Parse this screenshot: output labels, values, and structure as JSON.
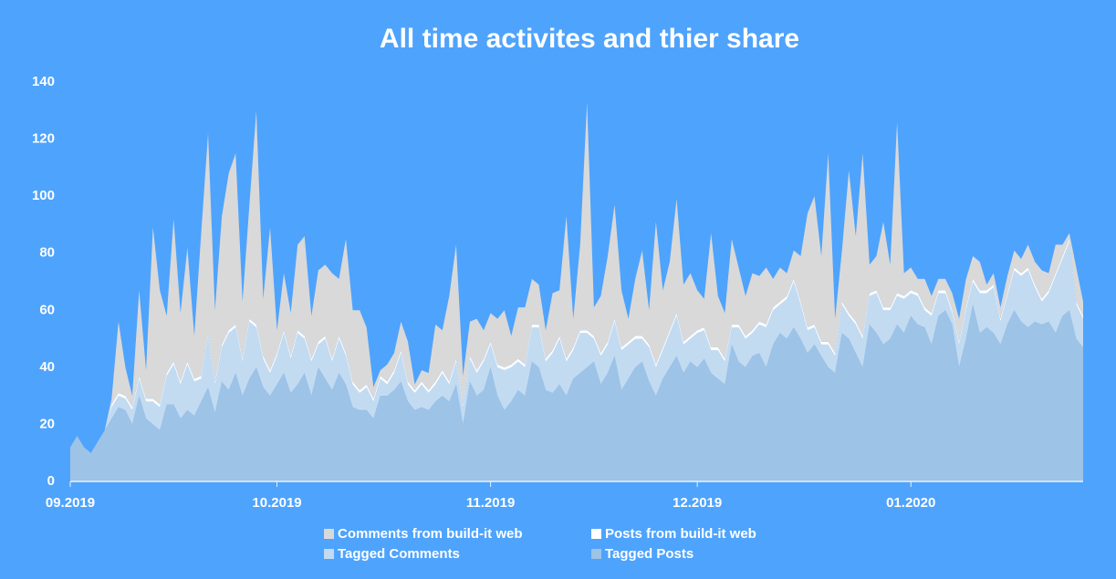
{
  "chart_data": {
    "type": "stacked-area",
    "title": "All time activites and thier share",
    "categories": [
      "09.2019",
      null,
      null,
      null,
      null,
      null,
      null,
      null,
      null,
      null,
      null,
      null,
      null,
      null,
      null,
      null,
      null,
      null,
      null,
      null,
      null,
      null,
      null,
      null,
      null,
      null,
      null,
      null,
      null,
      null,
      "10.2019",
      null,
      null,
      null,
      null,
      null,
      null,
      null,
      null,
      null,
      null,
      null,
      null,
      null,
      null,
      null,
      null,
      null,
      null,
      null,
      null,
      null,
      null,
      null,
      null,
      null,
      null,
      null,
      null,
      null,
      null,
      "11.2019",
      null,
      null,
      null,
      null,
      null,
      null,
      null,
      null,
      null,
      null,
      null,
      null,
      null,
      null,
      null,
      null,
      null,
      null,
      null,
      null,
      null,
      null,
      null,
      null,
      null,
      null,
      null,
      null,
      null,
      "12.2019",
      null,
      null,
      null,
      null,
      null,
      null,
      null,
      null,
      null,
      null,
      null,
      null,
      null,
      null,
      null,
      null,
      null,
      null,
      null,
      null,
      null,
      null,
      null,
      null,
      null,
      null,
      null,
      null,
      null,
      null,
      "01.2020",
      null,
      null,
      null,
      null,
      null,
      null,
      null,
      null,
      null,
      null,
      null,
      null,
      null,
      null,
      null,
      null,
      null,
      null,
      null,
      null,
      null,
      null,
      null,
      null,
      null
    ],
    "series": [
      {
        "name": "Comments from build-it web",
        "color": "#d9d9d9",
        "values": [
          0,
          0,
          0,
          0,
          0,
          0,
          2,
          25,
          10,
          4,
          30,
          10,
          60,
          40,
          20,
          50,
          24,
          40,
          15,
          50,
          70,
          25,
          45,
          55,
          60,
          20,
          40,
          75,
          20,
          50,
          8,
          20,
          15,
          30,
          35,
          15,
          25,
          25,
          30,
          20,
          40,
          25,
          28,
          20,
          4,
          2,
          6,
          6,
          10,
          14,
          2,
          4,
          6,
          20,
          14,
          30,
          40,
          10,
          12,
          18,
          10,
          10,
          16,
          20,
          10,
          18,
          20,
          16,
          14,
          10,
          20,
          16,
          50,
          10,
          30,
          80,
          10,
          20,
          30,
          40,
          20,
          8,
          20,
          30,
          12,
          50,
          20,
          24,
          40,
          20,
          22,
          14,
          10,
          40,
          18,
          16,
          30,
          20,
          14,
          20,
          16,
          20,
          10,
          12,
          8,
          10,
          16,
          40,
          45,
          30,
          66,
          12,
          18,
          50,
          30,
          64,
          10,
          12,
          30,
          15,
          60,
          8,
          8,
          5,
          10,
          6,
          4,
          4,
          6,
          8,
          10,
          8,
          10,
          2,
          4,
          4,
          6,
          6,
          5,
          8,
          8,
          10,
          6,
          10,
          4,
          2,
          12,
          5
        ]
      },
      {
        "name": "Posts from build-it web",
        "color": "#ffffff",
        "values": [
          0,
          0,
          0,
          0,
          0,
          0,
          1,
          1,
          1,
          1,
          1,
          1,
          1,
          1,
          1,
          1,
          1,
          1,
          1,
          1,
          1,
          1,
          1,
          1,
          1,
          1,
          1,
          1,
          1,
          1,
          1,
          1,
          1,
          1,
          1,
          1,
          1,
          1,
          1,
          1,
          1,
          1,
          1,
          1,
          1,
          1,
          1,
          1,
          1,
          1,
          1,
          1,
          1,
          1,
          1,
          1,
          1,
          1,
          1,
          1,
          1,
          1,
          1,
          1,
          1,
          1,
          1,
          1,
          1,
          1,
          1,
          1,
          1,
          1,
          1,
          1,
          1,
          1,
          1,
          1,
          1,
          1,
          1,
          1,
          1,
          1,
          1,
          1,
          1,
          1,
          1,
          1,
          1,
          1,
          1,
          1,
          1,
          1,
          1,
          1,
          1,
          1,
          1,
          1,
          1,
          1,
          1,
          1,
          1,
          1,
          1,
          1,
          1,
          1,
          1,
          1,
          1,
          1,
          1,
          1,
          1,
          1,
          1,
          1,
          1,
          1,
          1,
          1,
          1,
          1,
          1,
          1,
          1,
          1,
          1,
          1,
          1,
          1,
          1,
          1,
          1,
          1,
          1,
          1,
          1,
          1,
          1,
          1
        ]
      },
      {
        "name": "Tagged Comments",
        "color": "#c3dbf1",
        "values": [
          0,
          0,
          0,
          0,
          0,
          0,
          4,
          4,
          4,
          5,
          6,
          6,
          8,
          8,
          10,
          14,
          12,
          16,
          12,
          8,
          18,
          10,
          12,
          20,
          16,
          12,
          20,
          14,
          10,
          8,
          10,
          14,
          12,
          18,
          12,
          12,
          8,
          14,
          10,
          12,
          10,
          8,
          6,
          8,
          6,
          6,
          4,
          6,
          10,
          6,
          6,
          8,
          6,
          6,
          8,
          6,
          8,
          6,
          8,
          8,
          10,
          8,
          10,
          14,
          12,
          10,
          10,
          12,
          14,
          10,
          14,
          16,
          12,
          10,
          14,
          12,
          8,
          10,
          10,
          12,
          14,
          12,
          10,
          8,
          12,
          10,
          10,
          12,
          14,
          10,
          8,
          12,
          10,
          8,
          10,
          8,
          6,
          12,
          10,
          8,
          10,
          14,
          12,
          10,
          14,
          16,
          12,
          8,
          6,
          4,
          8,
          6,
          10,
          8,
          10,
          10,
          10,
          14,
          12,
          10,
          10,
          12,
          8,
          10,
          6,
          10,
          8,
          6,
          4,
          8,
          10,
          8,
          14,
          12,
          16,
          8,
          10,
          14,
          16,
          20,
          12,
          8,
          10,
          20,
          20,
          24,
          12,
          10
        ]
      },
      {
        "name": "Tagged Posts",
        "color": "#9dc3e6",
        "values": [
          12,
          16,
          12,
          10,
          14,
          18,
          22,
          26,
          25,
          20,
          30,
          22,
          20,
          18,
          27,
          27,
          22,
          25,
          23,
          28,
          33,
          24,
          35,
          32,
          38,
          30,
          36,
          40,
          33,
          30,
          34,
          38,
          31,
          34,
          38,
          30,
          40,
          36,
          32,
          38,
          34,
          26,
          25,
          25,
          22,
          30,
          30,
          32,
          35,
          28,
          25,
          26,
          25,
          28,
          30,
          28,
          34,
          20,
          35,
          30,
          32,
          40,
          30,
          25,
          28,
          32,
          30,
          42,
          40,
          32,
          31,
          34,
          30,
          36,
          38,
          40,
          42,
          34,
          38,
          44,
          32,
          36,
          40,
          42,
          35,
          30,
          36,
          40,
          44,
          38,
          42,
          40,
          43,
          38,
          36,
          34,
          48,
          42,
          40,
          44,
          45,
          40,
          48,
          52,
          50,
          54,
          50,
          45,
          48,
          44,
          40,
          38,
          52,
          50,
          45,
          40,
          55,
          52,
          48,
          50,
          55,
          52,
          58,
          55,
          54,
          48,
          58,
          60,
          55,
          40,
          50,
          62,
          52,
          54,
          52,
          48,
          55,
          60,
          56,
          54,
          56,
          55,
          56,
          52,
          58,
          60,
          50,
          47
        ]
      }
    ],
    "ylim": [
      0,
      140
    ],
    "yticks": [
      0,
      20,
      40,
      60,
      80,
      100,
      120,
      140
    ],
    "grid": false,
    "legend": "bottom"
  }
}
